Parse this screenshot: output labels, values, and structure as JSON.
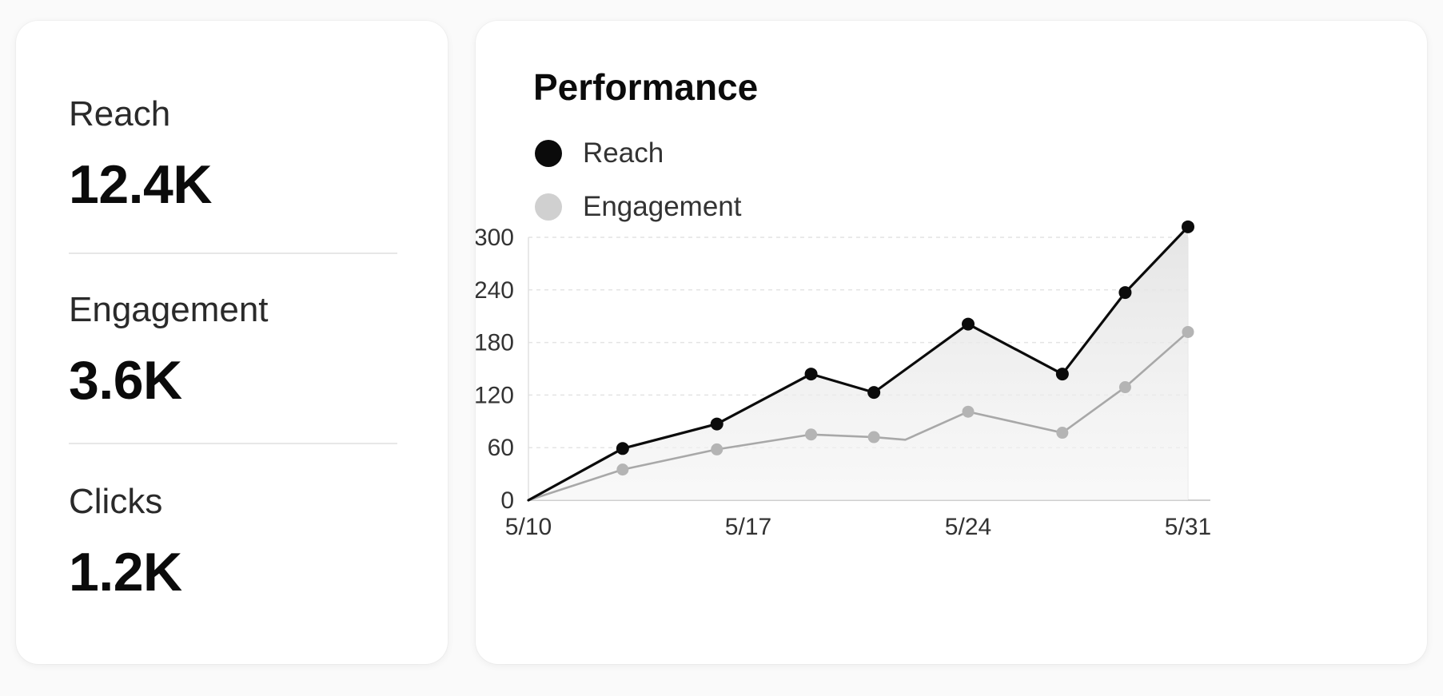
{
  "stats": [
    {
      "label": "Reach",
      "value": "12.4K"
    },
    {
      "label": "Engagement",
      "value": "3.6K"
    },
    {
      "label": "Clicks",
      "value": "1.2K"
    }
  ],
  "chart_data": {
    "type": "line",
    "title": "Performance",
    "xlabel": "",
    "ylabel": "",
    "x_ticks": [
      "5/10",
      "5/17",
      "5/24",
      "5/31"
    ],
    "x_range": [
      "5/10",
      "5/31"
    ],
    "ylim": [
      0,
      300
    ],
    "y_ticks": [
      0,
      60,
      120,
      180,
      240,
      300
    ],
    "grid": "horizontal dashed",
    "legend_position": "top-left",
    "series": [
      {
        "name": "Reach",
        "color": "#0b0b0b",
        "fill": "area",
        "points": [
          {
            "x": "5/10",
            "y": 0,
            "marker": false
          },
          {
            "x": "5/13",
            "y": 59,
            "marker": true
          },
          {
            "x": "5/16",
            "y": 87,
            "marker": true
          },
          {
            "x": "5/19",
            "y": 144,
            "marker": true
          },
          {
            "x": "5/21",
            "y": 123,
            "marker": true
          },
          {
            "x": "5/24",
            "y": 201,
            "marker": true
          },
          {
            "x": "5/27",
            "y": 144,
            "marker": true
          },
          {
            "x": "5/29",
            "y": 237,
            "marker": true
          },
          {
            "x": "5/31",
            "y": 312,
            "marker": true
          }
        ]
      },
      {
        "name": "Engagement",
        "color": "#a8a8a8",
        "marker_color": "#b4b4b4",
        "fill": "none",
        "points": [
          {
            "x": "5/10",
            "y": 0,
            "marker": false
          },
          {
            "x": "5/13",
            "y": 35,
            "marker": true
          },
          {
            "x": "5/16",
            "y": 58,
            "marker": true
          },
          {
            "x": "5/19",
            "y": 75,
            "marker": true
          },
          {
            "x": "5/21",
            "y": 72,
            "marker": true
          },
          {
            "x": "5/22",
            "y": 69,
            "marker": false
          },
          {
            "x": "5/24",
            "y": 101,
            "marker": true
          },
          {
            "x": "5/27",
            "y": 77,
            "marker": true
          },
          {
            "x": "5/29",
            "y": 129,
            "marker": true
          },
          {
            "x": "5/31",
            "y": 192,
            "marker": true
          }
        ]
      }
    ]
  },
  "legend_colors": {
    "Reach": "#0b0b0b",
    "Engagement": "#d0d0d0"
  }
}
